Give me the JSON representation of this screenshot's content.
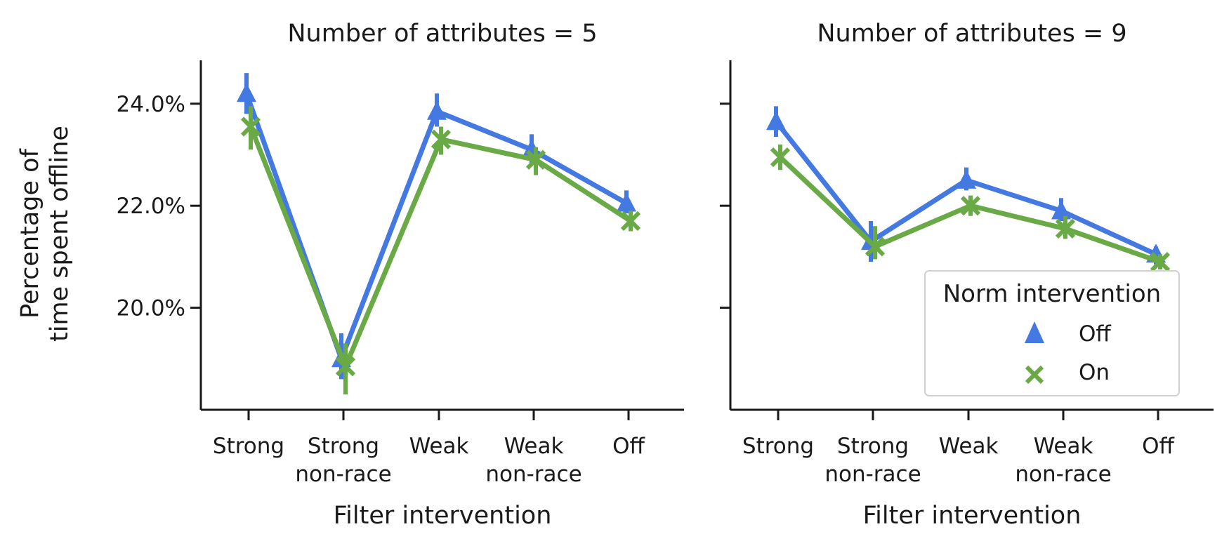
{
  "colors": {
    "off": "#4479e1",
    "on": "#6aaa46",
    "axis": "#1a1a1a"
  },
  "shared": {
    "ylabel_line1": "Percentage of",
    "ylabel_line2": "time spent offline",
    "xlabel": "Filter intervention",
    "ytick_labels": [
      "20.0%",
      "22.0%",
      "24.0%"
    ],
    "ytick_values": [
      20.0,
      22.0,
      24.0
    ],
    "ylim": [
      18.0,
      24.85
    ]
  },
  "legend": {
    "title": "Norm intervention",
    "entries": [
      {
        "label": "Off",
        "marker": "triangle-up-icon"
      },
      {
        "label": "On",
        "marker": "x-icon"
      }
    ]
  },
  "chart_data": [
    {
      "type": "line",
      "title": "Number of attributes = 5",
      "xlabel": "Filter intervention",
      "ylabel": "Percentage of time spent offline",
      "categories": [
        [
          "Strong"
        ],
        [
          "Strong",
          "non-race"
        ],
        [
          "Weak"
        ],
        [
          "Weak",
          "non-race"
        ],
        [
          "Off"
        ]
      ],
      "ylim": [
        18.0,
        24.85
      ],
      "series": [
        {
          "name": "Off",
          "marker": "triangle-up",
          "values": [
            24.2,
            19.0,
            23.85,
            23.1,
            22.05
          ],
          "ci_low": [
            23.8,
            18.6,
            23.55,
            22.8,
            21.85
          ],
          "ci_high": [
            24.6,
            19.5,
            24.2,
            23.4,
            22.3
          ]
        },
        {
          "name": "On",
          "marker": "x",
          "values": [
            23.55,
            18.85,
            23.3,
            22.9,
            21.7
          ],
          "ci_low": [
            23.1,
            18.3,
            23.0,
            22.6,
            21.5
          ],
          "ci_high": [
            23.95,
            19.3,
            23.55,
            23.15,
            21.9
          ]
        }
      ]
    },
    {
      "type": "line",
      "title": "Number of attributes = 9",
      "xlabel": "Filter intervention",
      "ylabel": "",
      "categories": [
        [
          "Strong"
        ],
        [
          "Strong",
          "non-race"
        ],
        [
          "Weak"
        ],
        [
          "Weak",
          "non-race"
        ],
        [
          "Off"
        ]
      ],
      "ylim": [
        18.0,
        24.85
      ],
      "series": [
        {
          "name": "Off",
          "marker": "triangle-up",
          "values": [
            23.65,
            21.3,
            22.5,
            21.9,
            21.05
          ],
          "ci_low": [
            23.35,
            20.9,
            22.3,
            21.7,
            20.85
          ],
          "ci_high": [
            23.95,
            21.7,
            22.75,
            22.15,
            21.2
          ]
        },
        {
          "name": "On",
          "marker": "x",
          "values": [
            22.95,
            21.2,
            22.0,
            21.55,
            20.9
          ],
          "ci_low": [
            22.7,
            20.95,
            21.8,
            21.35,
            20.75
          ],
          "ci_high": [
            23.2,
            21.6,
            22.2,
            21.8,
            21.05
          ]
        }
      ]
    }
  ]
}
